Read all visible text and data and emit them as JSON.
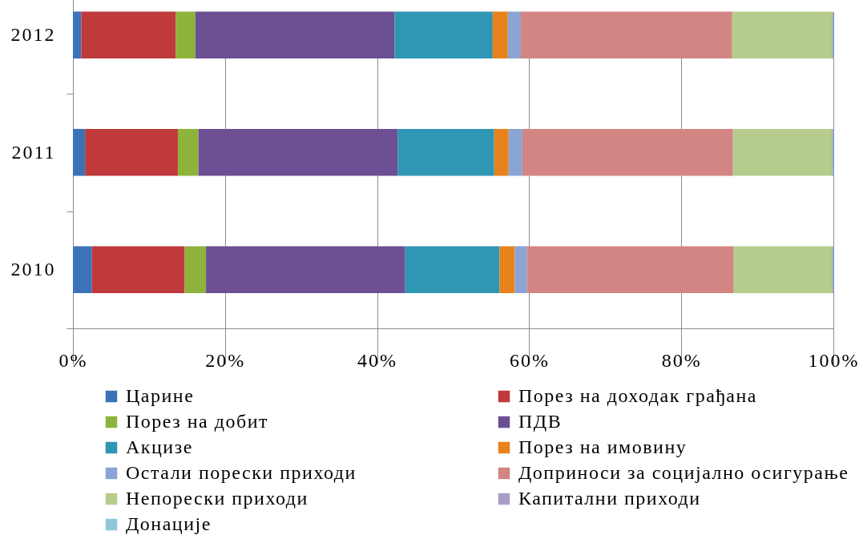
{
  "chart_data": {
    "type": "bar",
    "orientation": "horizontal",
    "stacked": true,
    "categories": [
      "2012",
      "2011",
      "2010"
    ],
    "series": [
      {
        "name": "Царине",
        "color": "#3c73b8",
        "values": [
          1.1,
          1.6,
          2.5
        ]
      },
      {
        "name": "Порез на доходак грађана",
        "color": "#c0393b",
        "values": [
          12.4,
          12.2,
          12.2
        ]
      },
      {
        "name": "Порез на добит",
        "color": "#8db33a",
        "values": [
          2.6,
          2.7,
          2.8
        ]
      },
      {
        "name": "ПДВ",
        "color": "#6d4f94",
        "values": [
          26.2,
          26.2,
          26.2
        ]
      },
      {
        "name": "Акцизе",
        "color": "#2f96b4",
        "values": [
          12.9,
          12.7,
          12.4
        ]
      },
      {
        "name": "Порез на имовину",
        "color": "#e8821c",
        "values": [
          2.0,
          1.9,
          2.0
        ]
      },
      {
        "name": "Остали порески приходи",
        "color": "#8aa4d4",
        "values": [
          1.7,
          1.8,
          1.6
        ]
      },
      {
        "name": "Доприноси за социјално осигурање",
        "color": "#d38583",
        "values": [
          27.8,
          27.7,
          27.2
        ]
      },
      {
        "name": "Непорески приходи",
        "color": "#b5cc8c",
        "values": [
          13.1,
          13.0,
          12.9
        ]
      },
      {
        "name": "Капитални приходи",
        "color": "#ab9cc6",
        "values": [
          0.1,
          0.1,
          0.1
        ]
      },
      {
        "name": "Донације",
        "color": "#8fc6d8",
        "values": [
          0.1,
          0.1,
          0.1
        ]
      }
    ],
    "xlim": [
      0,
      100
    ],
    "xticks": [
      {
        "value": 0,
        "label": "0%"
      },
      {
        "value": 20,
        "label": "20%"
      },
      {
        "value": 40,
        "label": "40%"
      },
      {
        "value": 60,
        "label": "60%"
      },
      {
        "value": 80,
        "label": "80%"
      },
      {
        "value": 100,
        "label": "100%"
      }
    ],
    "grid": "x",
    "legend": "bottom"
  }
}
